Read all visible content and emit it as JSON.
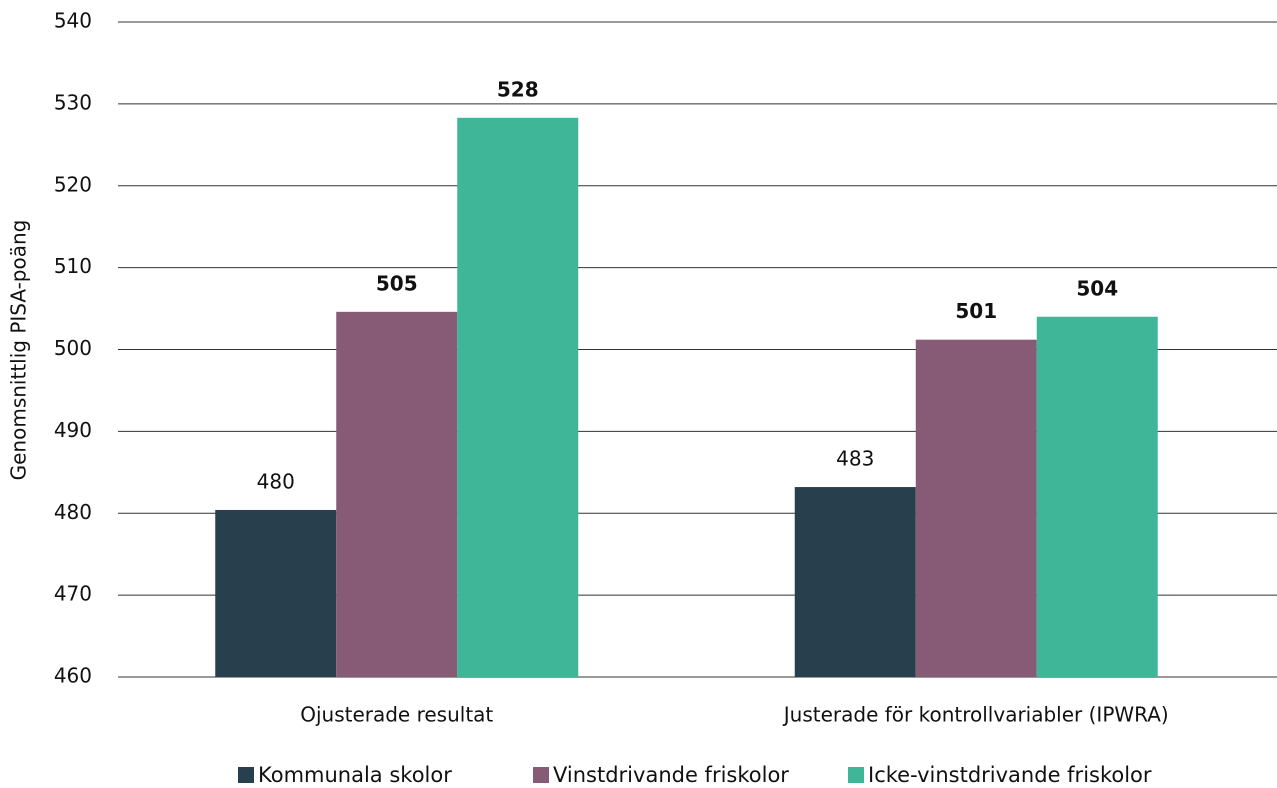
{
  "chart_data": {
    "type": "bar",
    "y_label": "Genomsnittlig PISA-poäng",
    "categories": [
      "Ojusterade resultat",
      "Justerade för kontrollvariabler (IPWRA)"
    ],
    "series": [
      {
        "name": "Kommunala skolor",
        "color": "#283f4e",
        "values": [
          480.4,
          483.2
        ],
        "value_labels": [
          "480",
          "483"
        ]
      },
      {
        "name": "Vinstdrivande friskolor",
        "color": "#875a75",
        "values": [
          504.6,
          501.2
        ],
        "value_labels": [
          "505",
          "501"
        ]
      },
      {
        "name": "Icke-vinstdrivande friskolor",
        "color": "#40b699",
        "values": [
          528.3,
          504.0
        ],
        "value_labels": [
          "528",
          "504"
        ]
      }
    ],
    "ylim": [
      460,
      540
    ],
    "yticks": [
      460,
      470,
      480,
      490,
      500,
      510,
      520,
      530,
      540
    ],
    "grid": true
  }
}
